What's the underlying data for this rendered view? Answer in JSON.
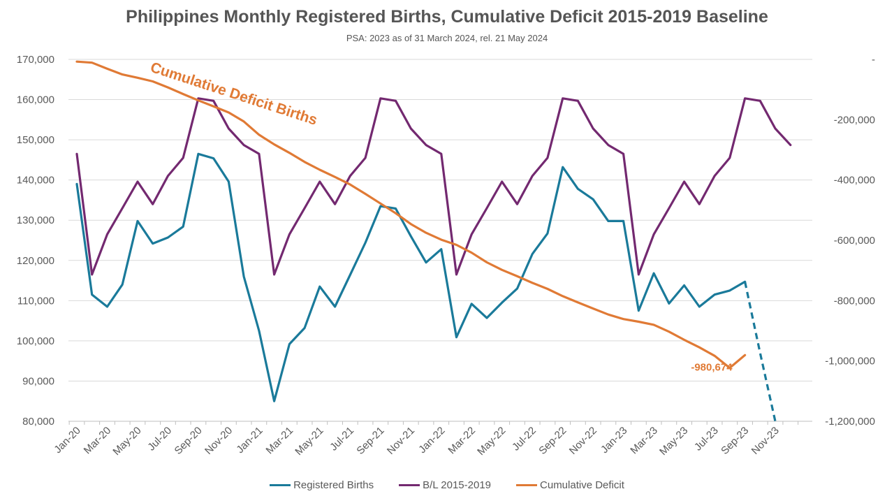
{
  "chart_data": {
    "type": "line",
    "title": "Philippines Monthly Registered Births, Cumulative Deficit 2015-2019  Baseline",
    "subtitle": "PSA:  2023 as of 31 March 2024, rel. 21 May 2024",
    "x": [
      "Jan-20",
      "Feb-20",
      "Mar-20",
      "Apr-20",
      "May-20",
      "Jun-20",
      "Jul-20",
      "Aug-20",
      "Sep-20",
      "Oct-20",
      "Nov-20",
      "Dec-20",
      "Jan-21",
      "Feb-21",
      "Mar-21",
      "Apr-21",
      "May-21",
      "Jun-21",
      "Jul-21",
      "Aug-21",
      "Sep-21",
      "Oct-21",
      "Nov-21",
      "Dec-21",
      "Jan-22",
      "Feb-22",
      "Mar-22",
      "Apr-22",
      "May-22",
      "Jun-22",
      "Jul-22",
      "Aug-22",
      "Sep-22",
      "Oct-22",
      "Nov-22",
      "Dec-22",
      "Jan-23",
      "Feb-23",
      "Mar-23",
      "Apr-23",
      "May-23",
      "Jun-23",
      "Jul-23",
      "Aug-23",
      "Sep-23",
      "Oct-23",
      "Nov-23",
      "Dec-23"
    ],
    "x_tick_labels": [
      "Jan-20",
      "Mar-20",
      "May-20",
      "Jul-20",
      "Sep-20",
      "Nov-20",
      "Jan-21",
      "Mar-21",
      "May-21",
      "Jul-21",
      "Sep-21",
      "Nov-21",
      "Jan-22",
      "Mar-22",
      "May-22",
      "Jul-22",
      "Sep-22",
      "Nov-22",
      "Jan-23",
      "Mar-23",
      "May-23",
      "Jul-23",
      "Sep-23",
      "Nov-23"
    ],
    "y_left": {
      "min": 80000,
      "max": 170000,
      "step": 10000,
      "tick_labels": [
        "80,000",
        "90,000",
        "100,000",
        "110,000",
        "120,000",
        "130,000",
        "140,000",
        "150,000",
        "160,000",
        "170,000"
      ]
    },
    "y_right": {
      "min": -1200000,
      "max": 0,
      "step": 200000,
      "tick_labels": [
        "-1,200,000",
        "-1,000,000",
        "-800,000",
        "-600,000",
        "-400,000",
        "-200,000",
        "-"
      ]
    },
    "grid": true,
    "legend_position": "bottom",
    "series": [
      {
        "name": "Registered Births",
        "axis": "left",
        "color": "#1a7a9a",
        "values": [
          139000,
          111500,
          108500,
          114000,
          129800,
          124200,
          125700,
          128400,
          146500,
          145400,
          139600,
          116000,
          102500,
          85000,
          99200,
          103200,
          113500,
          108500,
          116400,
          124400,
          133500,
          132900,
          126000,
          119500,
          122800,
          100900,
          109200,
          105700,
          109500,
          113000,
          121600,
          126700,
          143200,
          137800,
          135200,
          129800,
          129800,
          107500,
          116800,
          109300,
          113800,
          108500,
          111500,
          112500,
          114700,
          97000,
          80000,
          null
        ],
        "dashed_from": "Sep-23"
      },
      {
        "name": "B/L 2015-2019",
        "axis": "left",
        "color": "#732970",
        "values": [
          146500,
          116500,
          126500,
          133000,
          139600,
          134000,
          141000,
          145500,
          160300,
          159700,
          152800,
          148700,
          146500,
          116500,
          126500,
          133000,
          139600,
          134000,
          141000,
          145500,
          160300,
          159700,
          152800,
          148700,
          146500,
          116500,
          126500,
          133000,
          139600,
          134000,
          141000,
          145500,
          160300,
          159700,
          152800,
          148700,
          146500,
          116500,
          126500,
          133000,
          139600,
          134000,
          141000,
          145500,
          160300,
          159700,
          152800,
          148700
        ]
      },
      {
        "name": "Cumulative Deficit",
        "axis": "right",
        "color": "#e07a35",
        "values": [
          -7500,
          -11000,
          -31000,
          -50000,
          -61000,
          -73000,
          -93000,
          -115000,
          -136000,
          -156000,
          -176000,
          -206000,
          -250000,
          -282000,
          -310000,
          -340000,
          -366000,
          -390000,
          -415000,
          -446000,
          -478000,
          -510000,
          -546000,
          -575000,
          -598000,
          -615000,
          -641000,
          -673000,
          -698000,
          -719000,
          -741000,
          -761000,
          -785000,
          -806000,
          -826000,
          -846000,
          -861000,
          -870000,
          -880000,
          -903000,
          -930000,
          -955000,
          -983000,
          -1023000,
          -980674,
          null,
          null,
          null
        ],
        "end_label": "-980,674"
      }
    ],
    "annotations": [
      {
        "text": "Cumulative Deficit Births",
        "color": "#e07a35"
      }
    ]
  }
}
